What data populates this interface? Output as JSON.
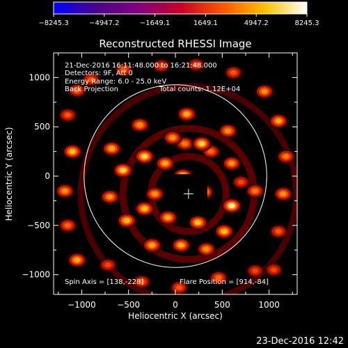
{
  "chart_data": {
    "type": "heatmap",
    "title": "Reconstructed RHESSI Image",
    "xlabel": "Heliocentric X (arcsec)",
    "ylabel": "Heliocentric Y (arcsec)",
    "xlim": [
      -1300,
      1300
    ],
    "ylim": [
      -1200,
      1250
    ],
    "x_ticks": [
      -1000,
      -500,
      0,
      500,
      1000
    ],
    "y_ticks": [
      -1000,
      -500,
      0,
      500,
      1000
    ],
    "x_tick_labels": [
      "−1000",
      "−500",
      "0",
      "500",
      "1000"
    ],
    "y_tick_labels": [
      "−1000",
      "−500",
      "0",
      "500",
      "1000"
    ],
    "colorbar": {
      "min": -8245.3,
      "max": 8245.3,
      "tick_values": [
        -8245.3,
        -4947.2,
        -1649.1,
        1649.1,
        4947.2,
        8245.3
      ],
      "tick_labels": [
        "−8245.3",
        "−4947.2",
        "−1649.1",
        "1649.1",
        "4947.2",
        "8245.3"
      ],
      "colors": [
        "#0000ff",
        "#4b0089",
        "#7f007f",
        "#c70026",
        "#ff5500",
        "#ffc000",
        "#ffffff"
      ]
    },
    "annotations": {
      "time_range": "21-Dec-2016 16:11:48.000 to 16:21:48.000",
      "detectors": "Detectors: 9F, Att 0",
      "energy_range": "Energy Range: 6.0 - 25.0 keV",
      "method": "Back Projection",
      "total_counts": "Total counts: 1.12E+04",
      "spin_axis": "Spin Axis = [138,-228]",
      "flare_position": "Flare Position = [914,-84]"
    },
    "solar_limb": {
      "center": [
        0,
        0
      ],
      "radius": 975
    },
    "center_marker": [
      140,
      -180
    ],
    "ring_radii": [
      400,
      700
    ],
    "outer_arc_radius": 1150,
    "blobs": [
      {
        "x": 80,
        "y": 0,
        "v": 1.0
      },
      {
        "x": 300,
        "y": -160,
        "v": 0.95
      },
      {
        "x": 240,
        "y": -470,
        "v": 0.85
      },
      {
        "x": -80,
        "y": -420,
        "v": 0.8
      },
      {
        "x": -220,
        "y": -180,
        "v": 0.75
      },
      {
        "x": -110,
        "y": 130,
        "v": 0.8
      },
      {
        "x": 100,
        "y": 330,
        "v": 0.7
      },
      {
        "x": 380,
        "y": 250,
        "v": 0.65
      },
      {
        "x": -330,
        "y": 200,
        "v": 0.9
      },
      {
        "x": -330,
        "y": -330,
        "v": 0.85
      },
      {
        "x": -30,
        "y": 390,
        "v": 0.75
      },
      {
        "x": 280,
        "y": 330,
        "v": 0.9
      },
      {
        "x": 600,
        "y": -300,
        "v": 0.95
      },
      {
        "x": 600,
        "y": 130,
        "v": 0.75
      },
      {
        "x": 520,
        "y": -560,
        "v": 0.85
      },
      {
        "x": 60,
        "y": -700,
        "v": 0.8
      },
      {
        "x": -520,
        "y": -450,
        "v": 0.85
      },
      {
        "x": -560,
        "y": 60,
        "v": 0.9
      },
      {
        "x": -380,
        "y": 520,
        "v": 0.75
      },
      {
        "x": 120,
        "y": 630,
        "v": 0.8
      },
      {
        "x": 560,
        "y": 460,
        "v": 0.75
      },
      {
        "x": 700,
        "y": -60,
        "v": 0.55
      },
      {
        "x": 330,
        "y": -740,
        "v": 0.75
      },
      {
        "x": -250,
        "y": -700,
        "v": 0.8
      },
      {
        "x": -700,
        "y": -210,
        "v": 0.75
      },
      {
        "x": -680,
        "y": 280,
        "v": 0.8
      },
      {
        "x": 850,
        "y": -150,
        "v": 0.7
      },
      {
        "x": -1050,
        "y": 870,
        "v": 0.65
      },
      {
        "x": -1150,
        "y": 620,
        "v": 0.6
      },
      {
        "x": -900,
        "y": 980,
        "v": 0.6
      },
      {
        "x": -1100,
        "y": 250,
        "v": 0.85
      },
      {
        "x": -1180,
        "y": -150,
        "v": 0.75
      },
      {
        "x": -1150,
        "y": -500,
        "v": 0.65
      },
      {
        "x": -1050,
        "y": -850,
        "v": 0.8
      },
      {
        "x": -720,
        "y": -900,
        "v": 0.55
      },
      {
        "x": -360,
        "y": -1070,
        "v": 0.6
      },
      {
        "x": 40,
        "y": -1130,
        "v": 0.6
      },
      {
        "x": 460,
        "y": -1030,
        "v": 0.65
      },
      {
        "x": 850,
        "y": -960,
        "v": 0.55
      },
      {
        "x": 1050,
        "y": -950,
        "v": 0.55
      },
      {
        "x": 1100,
        "y": -560,
        "v": 0.6
      },
      {
        "x": 1150,
        "y": -180,
        "v": 0.75
      },
      {
        "x": 1180,
        "y": 200,
        "v": 0.7
      },
      {
        "x": 1100,
        "y": 560,
        "v": 0.8
      },
      {
        "x": 950,
        "y": 860,
        "v": 0.75
      },
      {
        "x": 620,
        "y": 1050,
        "v": 0.6
      },
      {
        "x": 220,
        "y": 1130,
        "v": 0.55
      },
      {
        "x": -150,
        "y": 1120,
        "v": 0.55
      },
      {
        "x": -550,
        "y": 1080,
        "v": 0.6
      }
    ]
  },
  "footer": {
    "timestamp": "23-Dec-2016 12:42"
  }
}
